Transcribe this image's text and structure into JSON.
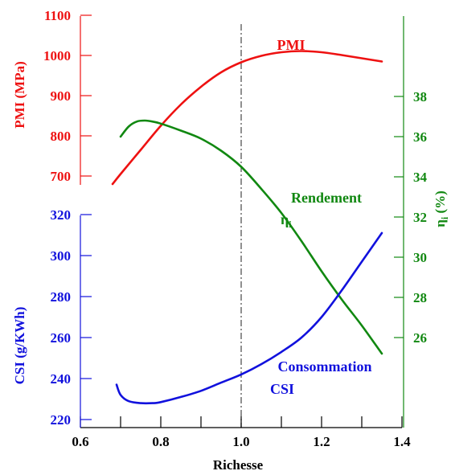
{
  "chart_data": {
    "type": "line",
    "xlabel": "Richesse",
    "xlim": [
      0.6,
      1.4
    ],
    "x_ticks": [
      "0.6",
      "0.8",
      "1.0",
      "1.2",
      "1.4"
    ],
    "reference_line": {
      "x": 1.0,
      "style": "dash-dot",
      "color": "#555555"
    },
    "axes": {
      "pmi": {
        "label": "PMI (MPa)",
        "color": "#ee1111",
        "side": "left-top",
        "range": [
          670,
          1100
        ],
        "ticks": [
          "700",
          "800",
          "900",
          "1000",
          "1100"
        ]
      },
      "csi": {
        "label": "CSI (g/KWh)",
        "color": "#1111dd",
        "side": "left-bottom",
        "range": [
          218,
          320
        ],
        "ticks": [
          "220",
          "240",
          "260",
          "280",
          "300",
          "320"
        ]
      },
      "eta": {
        "label_main": "η",
        "label_sub": "i",
        "label_unit": " (%)",
        "color": "#118811",
        "side": "right",
        "range": [
          21,
          41
        ],
        "ticks": [
          "26",
          "28",
          "30",
          "32",
          "34",
          "36",
          "38"
        ]
      }
    },
    "series": [
      {
        "name": "PMI",
        "axis": "pmi",
        "color": "#ee1111",
        "x": [
          0.68,
          0.7,
          0.75,
          0.8,
          0.85,
          0.9,
          0.95,
          1.0,
          1.05,
          1.1,
          1.15,
          1.2,
          1.25,
          1.3,
          1.35
        ],
        "values": [
          680,
          705,
          765,
          825,
          878,
          922,
          958,
          983,
          999,
          1008,
          1011,
          1008,
          1001,
          993,
          985
        ]
      },
      {
        "name": "Rendement",
        "name_line2_main": "η",
        "name_line2_sub": "i",
        "axis": "eta",
        "color": "#118811",
        "x": [
          0.7,
          0.72,
          0.74,
          0.76,
          0.78,
          0.8,
          0.85,
          0.9,
          0.95,
          1.0,
          1.05,
          1.1,
          1.15,
          1.2,
          1.25,
          1.3,
          1.35
        ],
        "values": [
          36.0,
          36.5,
          36.75,
          36.8,
          36.75,
          36.65,
          36.3,
          35.9,
          35.3,
          34.5,
          33.4,
          32.2,
          30.8,
          29.3,
          27.9,
          26.6,
          25.2
        ]
      },
      {
        "name": "Consommation",
        "name_line2": "CSI",
        "axis": "csi",
        "color": "#1111dd",
        "x": [
          0.69,
          0.7,
          0.72,
          0.75,
          0.78,
          0.8,
          0.85,
          0.9,
          0.95,
          1.0,
          1.05,
          1.1,
          1.15,
          1.2,
          1.25,
          1.3,
          1.35
        ],
        "values": [
          237,
          232,
          229,
          228,
          228,
          228.5,
          231,
          234,
          238,
          242,
          247,
          253,
          260,
          270,
          283,
          297,
          311
        ]
      }
    ]
  }
}
